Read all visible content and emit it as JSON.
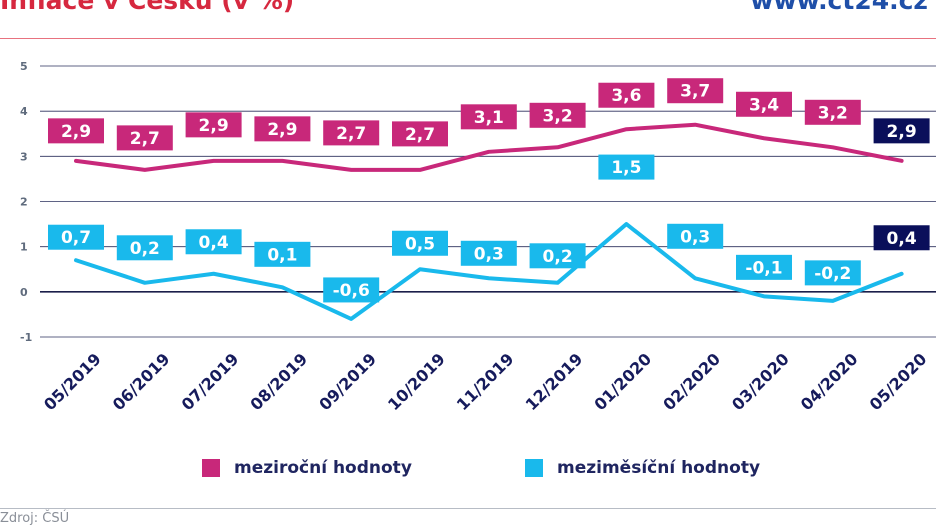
{
  "header": {
    "title": "Inflace v Česku (v %)",
    "site": "www.ct24.cz"
  },
  "footer": {
    "source": "Zdroj: ČSÚ"
  },
  "chart_data": {
    "type": "line",
    "title": "Inflace v Česku (v %)",
    "categories": [
      "05/2019",
      "06/2019",
      "07/2019",
      "08/2019",
      "09/2019",
      "10/2019",
      "11/2019",
      "12/2019",
      "01/2020",
      "02/2020",
      "03/2020",
      "04/2020",
      "05/2020"
    ],
    "series": [
      {
        "name": "meziroční hodnoty",
        "color": "#c8287a",
        "values": [
          2.9,
          2.7,
          2.9,
          2.9,
          2.7,
          2.7,
          3.1,
          3.2,
          3.6,
          3.7,
          3.4,
          3.2,
          2.9
        ],
        "labels": [
          "2,9",
          "2,7",
          "2,9",
          "2,9",
          "2,7",
          "2,7",
          "3,1",
          "3,2",
          "3,6",
          "3,7",
          "3,4",
          "3,2",
          "2,9"
        ]
      },
      {
        "name": "meziměsíční hodnoty",
        "color": "#19b9ec",
        "values": [
          0.7,
          0.2,
          0.4,
          0.1,
          -0.6,
          0.5,
          0.3,
          0.2,
          1.5,
          0.3,
          -0.1,
          -0.2,
          0.4
        ],
        "labels": [
          "0,7",
          "0,2",
          "0,4",
          "0,1",
          "-0,6",
          "0,5",
          "0,3",
          "0,2",
          "1,5",
          "0,3",
          "-0,1",
          "-0,2",
          "0,4"
        ]
      }
    ],
    "highlight_color": "#0a0f5a",
    "yticks": [
      "5",
      "4",
      "3",
      "2",
      "1",
      "0",
      "-1"
    ],
    "ylim": [
      -1,
      5
    ],
    "grid": true,
    "legend": "bottom"
  }
}
